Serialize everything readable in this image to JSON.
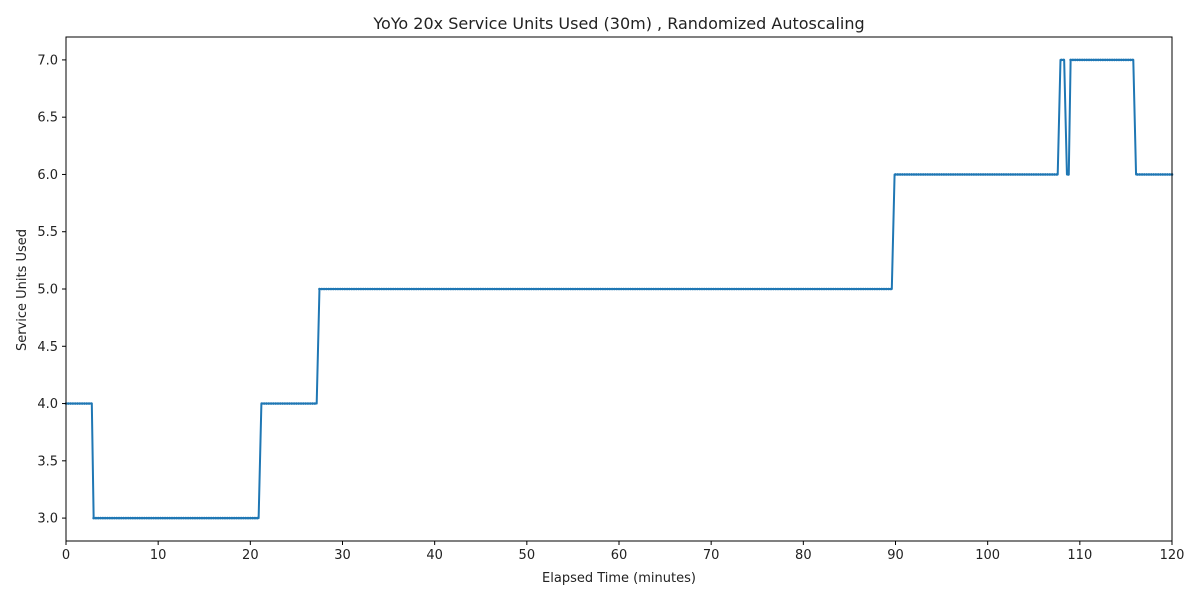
{
  "chart_data": {
    "type": "line",
    "title": "YoYo 20x Service Units Used (30m) , Randomized Autoscaling",
    "xlabel": "Elapsed Time (minutes)",
    "ylabel": "Service Units Used",
    "xlim": [
      0,
      120
    ],
    "ylim": [
      2.8,
      7.2
    ],
    "xticks": [
      0,
      10,
      20,
      30,
      40,
      50,
      60,
      70,
      80,
      90,
      100,
      110,
      120
    ],
    "yticks": [
      3.0,
      3.5,
      4.0,
      4.5,
      5.0,
      5.5,
      6.0,
      6.5,
      7.0
    ],
    "grid": false,
    "series": [
      {
        "name": "Service Units Used",
        "color": "#1f77b4",
        "x": [
          0,
          2.8,
          3.0,
          20.9,
          21.2,
          27.2,
          27.5,
          89.6,
          89.9,
          107.6,
          107.9,
          108.3,
          108.6,
          108.8,
          109.0,
          115.8,
          116.1,
          120
        ],
        "y": [
          4,
          4,
          3,
          3,
          4,
          4,
          5,
          5,
          6,
          6,
          7,
          7,
          6,
          6,
          7,
          7,
          6,
          6
        ]
      }
    ]
  }
}
